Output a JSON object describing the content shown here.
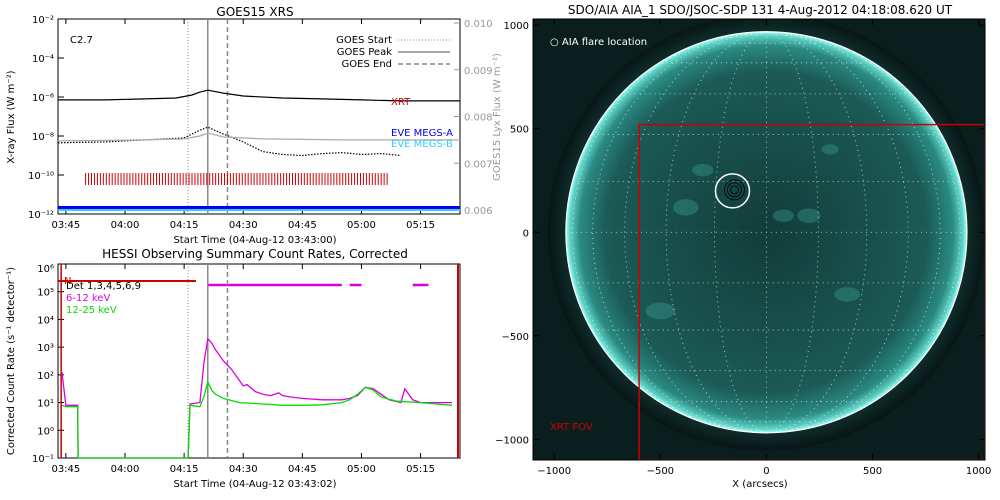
{
  "chart_data": [
    {
      "type": "line",
      "title": "GOES15 XRS",
      "xlabel": "Start Time (04-Aug-12 03:43:00)",
      "ylabel": "X-ray Flux (W m⁻²)",
      "ylabel_right": "GOES15 Lyx Flux (W m⁻²)",
      "flare_class": "C2.7",
      "x_ticks": [
        "03:45",
        "04:00",
        "04:15",
        "04:30",
        "04:45",
        "05:00",
        "05:15"
      ],
      "x_tick_minutes": [
        0,
        15,
        30,
        45,
        60,
        75,
        90
      ],
      "xlim": [
        -2,
        100
      ],
      "y_ticks": [
        "10⁻²",
        "10⁻⁴",
        "10⁻⁶",
        "10⁻⁸",
        "10⁻¹⁰",
        "10⁻¹²"
      ],
      "y_tick_exponents": [
        -2,
        -4,
        -6,
        -8,
        -10,
        -12
      ],
      "ylim_exponent": [
        -12,
        -2
      ],
      "y_ticks_right": [
        "0.010",
        "0.009",
        "0.008",
        "0.007",
        "0.006"
      ],
      "y_ticks_right_values": [
        0.01,
        0.009,
        0.008,
        0.007,
        0.006
      ],
      "legend": [
        {
          "label": "GOES Start",
          "style": "dotted",
          "color": "#888888"
        },
        {
          "label": "GOES Peak",
          "style": "solid",
          "color": "#888888"
        },
        {
          "label": "GOES End",
          "style": "dashed",
          "color": "#888888"
        }
      ],
      "event_lines_minutes": {
        "start": 31,
        "peak": 36,
        "end": 41
      },
      "series": [
        {
          "name": "XRT",
          "color": "#000000",
          "style": "solid",
          "x": [
            -2,
            10,
            20,
            28,
            32,
            34,
            36,
            40,
            45,
            55,
            65,
            75,
            85,
            100
          ],
          "log10_y": [
            -6.15,
            -6.15,
            -6.1,
            -6.05,
            -5.9,
            -5.75,
            -5.65,
            -5.8,
            -5.95,
            -6.05,
            -6.1,
            -6.15,
            -6.2,
            -6.2
          ]
        },
        {
          "name": "",
          "color": "#000000",
          "style": "dotted",
          "x": [
            -2,
            10,
            20,
            30,
            34,
            36,
            40,
            45,
            50,
            55,
            60,
            65,
            70,
            75,
            80,
            85
          ],
          "log10_y": [
            -8.35,
            -8.3,
            -8.2,
            -8.1,
            -7.7,
            -7.55,
            -7.9,
            -8.3,
            -8.8,
            -8.95,
            -9.0,
            -8.9,
            -8.85,
            -8.95,
            -8.9,
            -9.0
          ]
        },
        {
          "name": "",
          "color": "#aaaaaa",
          "style": "solid",
          "x": [
            -2,
            20,
            30,
            34,
            36,
            40,
            50,
            70,
            100
          ],
          "log10_y": [
            -8.25,
            -8.2,
            -8.15,
            -8.0,
            -7.85,
            -8.05,
            -8.15,
            -8.2,
            -8.2
          ]
        }
      ],
      "labels": [
        {
          "text": "XRT",
          "color": "#cc0000"
        },
        {
          "text": "EVE MEGS-A",
          "color": "#0000ee"
        },
        {
          "text": "EVE MEGS-B",
          "color": "#33ccff"
        }
      ],
      "xrt_coverage_minutes": [
        5,
        82
      ],
      "bottom_bar_colors": [
        "#0000ee",
        "#33ccff"
      ]
    },
    {
      "type": "line",
      "title": "HESSI Observing Summary Count Rates, Corrected",
      "xlabel": "Start Time (04-Aug-12 03:43:02)",
      "ylabel": "Corrected Count Rate (s⁻¹ detector⁻¹)",
      "x_ticks": [
        "03:45",
        "04:00",
        "04:15",
        "04:30",
        "04:45",
        "05:00",
        "05:15"
      ],
      "x_tick_minutes": [
        0,
        15,
        30,
        45,
        60,
        75,
        90
      ],
      "xlim": [
        -2,
        100
      ],
      "y_ticks": [
        "10⁵",
        "10⁴",
        "10³",
        "10²",
        "10¹",
        "10⁰",
        "10⁻¹"
      ],
      "y_tick_exponents": [
        5,
        4,
        3,
        2,
        1,
        0,
        -1
      ],
      "top_label": "10⁶",
      "ylim_exponent": [
        -1,
        6
      ],
      "legend": [
        {
          "label": "Det 1,3,4,5,6,9",
          "color": "#000000"
        },
        {
          "label": "6-12 keV",
          "color": "#dd00dd"
        },
        {
          "label": "12-25 keV",
          "color": "#00dd00"
        }
      ],
      "night_flag": "N",
      "event_lines_minutes": {
        "start": 31,
        "peak": 36,
        "end": 41
      },
      "series": [
        {
          "name": "6-12 keV",
          "color": "#dd00dd",
          "x": [
            -1,
            0,
            3,
            3.1,
            31,
            31.5,
            34,
            35,
            36,
            37,
            38,
            40,
            42,
            44,
            45,
            46,
            48,
            50,
            52,
            54,
            55,
            57,
            60,
            65,
            70,
            72,
            74,
            76,
            78,
            80,
            82,
            85,
            86,
            88,
            90,
            94,
            98
          ],
          "log10_y": [
            2.1,
            0.9,
            0.9,
            -1.5,
            -1.5,
            0.95,
            1.0,
            2.4,
            3.3,
            3.15,
            2.9,
            2.5,
            2.2,
            1.8,
            1.6,
            1.65,
            1.4,
            1.3,
            1.25,
            1.35,
            1.25,
            1.2,
            1.15,
            1.1,
            1.1,
            1.15,
            1.25,
            1.55,
            1.5,
            1.3,
            1.1,
            1.0,
            1.5,
            1.1,
            1.0,
            1.0,
            1.0
          ]
        },
        {
          "name": "12-25 keV",
          "color": "#00dd00",
          "x": [
            -1,
            0,
            3,
            3.1,
            31,
            31.5,
            34,
            35,
            36,
            37,
            38,
            40,
            44,
            50,
            55,
            60,
            65,
            70,
            72,
            74,
            76,
            78,
            80,
            84,
            90,
            98
          ],
          "log10_y": [
            0.9,
            0.85,
            0.85,
            -1.5,
            -1.5,
            0.9,
            0.85,
            1.2,
            1.75,
            1.45,
            1.3,
            1.15,
            1.0,
            0.95,
            0.9,
            0.9,
            0.92,
            1.0,
            1.1,
            1.3,
            1.55,
            1.45,
            1.2,
            1.05,
            1.0,
            0.9
          ]
        }
      ],
      "attenuator_coverage_minutes": [
        [
          -2,
          33
        ],
        [
          36,
          70
        ],
        [
          72,
          75
        ],
        [
          88,
          92
        ]
      ]
    },
    {
      "type": "scatter",
      "title": "SDO/AIA AIA_1 SDO/JSOC-SDP 131   4-Aug-2012 04:18:08.620 UT",
      "xlabel": "X (arcsecs)",
      "ylabel": "",
      "x_ticks": [
        "−1000",
        "−500",
        "0",
        "500",
        "1000"
      ],
      "x_tick_values": [
        -1000,
        -500,
        0,
        500,
        1000
      ],
      "y_ticks": [
        "1000",
        "500",
        "0",
        "−500",
        "−1000"
      ],
      "y_tick_values": [
        1000,
        500,
        0,
        -500,
        -1000
      ],
      "xlim": [
        -1100,
        1030
      ],
      "ylim": [
        -1100,
        1030
      ],
      "solar_radius_arcsec": 945,
      "flare_location_label": "AIA flare location",
      "flare_location_arcsec": [
        -160,
        200
      ],
      "xrt_fov_label": "XRT FOV",
      "xrt_fov_arcsec": {
        "x": [
          -600,
          1030
        ],
        "y": [
          -1100,
          520
        ]
      },
      "colors": {
        "sun": "#1b5f5b",
        "limb": "#7ae6dc",
        "fov": "#cc0000",
        "grid": "#ffffff"
      }
    }
  ]
}
